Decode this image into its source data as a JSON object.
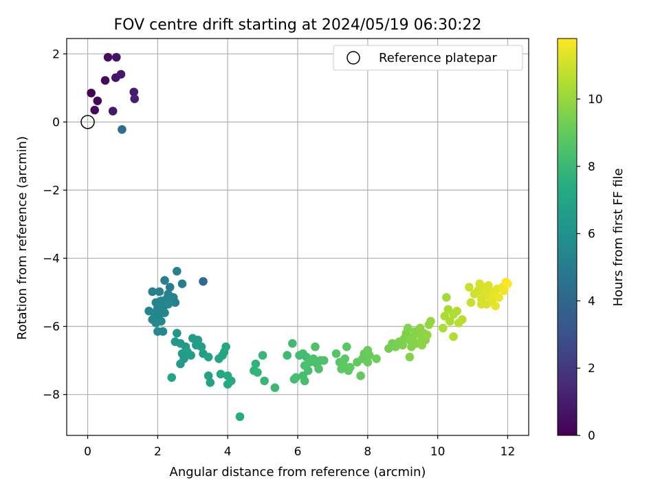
{
  "chart_data": {
    "type": "scatter",
    "title": "FOV centre drift starting at 2024/05/19 06:30:22",
    "xlabel": "Angular distance from reference (arcmin)",
    "ylabel": "Rotation from reference (arcmin)",
    "xlim": [
      -0.6,
      12.6
    ],
    "ylim": [
      -9.2,
      2.45
    ],
    "xticks": [
      0,
      2,
      4,
      6,
      8,
      10,
      12
    ],
    "yticks": [
      -8,
      -6,
      -4,
      -2,
      0,
      2
    ],
    "grid": true,
    "legend": {
      "placement": "top-right",
      "entries": [
        "Reference platepar"
      ]
    },
    "reference_point": {
      "x": 0,
      "y": 0,
      "marker": "open-circle"
    },
    "colorbar": {
      "label": "Hours from first FF file",
      "colormap": "viridis",
      "range": [
        0,
        11.8
      ],
      "ticks": [
        0,
        2,
        4,
        6,
        8,
        10
      ]
    },
    "points": [
      [
        0.1,
        0.85,
        0.1
      ],
      [
        0.2,
        0.35,
        0.2
      ],
      [
        0.28,
        0.62,
        0.3
      ],
      [
        0.5,
        1.22,
        0.4
      ],
      [
        0.58,
        1.9,
        0.5
      ],
      [
        0.82,
        1.9,
        0.6
      ],
      [
        0.8,
        1.3,
        0.7
      ],
      [
        0.95,
        1.4,
        0.8
      ],
      [
        0.72,
        0.32,
        0.9
      ],
      [
        1.32,
        0.88,
        1.0
      ],
      [
        1.34,
        0.68,
        1.1
      ],
      [
        0.98,
        -0.22,
        4.3
      ],
      [
        3.3,
        -4.68,
        4.2
      ],
      [
        2.55,
        -4.38,
        5.2
      ],
      [
        2.2,
        -4.65,
        5.1
      ],
      [
        2.35,
        -4.85,
        5.0
      ],
      [
        2.7,
        -4.75,
        5.1
      ],
      [
        1.85,
        -4.98,
        5.2
      ],
      [
        2.05,
        -4.98,
        5.2
      ],
      [
        2.3,
        -5.05,
        5.3
      ],
      [
        2.45,
        -5.15,
        5.3
      ],
      [
        2.5,
        -5.3,
        5.2
      ],
      [
        2.25,
        -5.2,
        5.3
      ],
      [
        2.1,
        -5.25,
        5.4
      ],
      [
        1.95,
        -5.3,
        5.4
      ],
      [
        2.0,
        -5.45,
        5.4
      ],
      [
        2.15,
        -5.45,
        5.4
      ],
      [
        2.3,
        -5.35,
        5.5
      ],
      [
        1.75,
        -5.55,
        5.4
      ],
      [
        1.9,
        -5.6,
        5.5
      ],
      [
        2.05,
        -5.65,
        5.5
      ],
      [
        2.2,
        -5.6,
        5.5
      ],
      [
        1.85,
        -5.8,
        5.5
      ],
      [
        2.0,
        -5.8,
        5.5
      ],
      [
        2.1,
        -5.85,
        5.6
      ],
      [
        1.95,
        -5.9,
        5.6
      ],
      [
        2.15,
        -6.15,
        5.6
      ],
      [
        2.0,
        -6.15,
        5.6
      ],
      [
        2.55,
        -6.2,
        6.2
      ],
      [
        2.5,
        -6.45,
        6.3
      ],
      [
        2.65,
        -6.5,
        6.3
      ],
      [
        2.8,
        -6.6,
        6.4
      ],
      [
        2.7,
        -6.8,
        6.5
      ],
      [
        2.75,
        -6.95,
        6.5
      ],
      [
        2.85,
        -6.75,
        6.6
      ],
      [
        2.95,
        -6.85,
        6.6
      ],
      [
        2.65,
        -7.1,
        6.5
      ],
      [
        3.0,
        -6.35,
        6.6
      ],
      [
        3.15,
        -6.4,
        6.6
      ],
      [
        3.25,
        -6.6,
        6.7
      ],
      [
        3.1,
        -6.55,
        6.7
      ],
      [
        3.3,
        -6.8,
        6.7
      ],
      [
        3.45,
        -6.9,
        6.8
      ],
      [
        3.45,
        -7.45,
        6.8
      ],
      [
        3.5,
        -7.65,
        6.8
      ],
      [
        2.4,
        -7.5,
        6.9
      ],
      [
        3.75,
        -6.95,
        7.0
      ],
      [
        3.85,
        -6.85,
        7.0
      ],
      [
        3.9,
        -6.75,
        7.1
      ],
      [
        3.95,
        -6.6,
        7.1
      ],
      [
        3.8,
        -7.4,
        7.1
      ],
      [
        4.0,
        -7.45,
        7.2
      ],
      [
        4.1,
        -7.6,
        7.2
      ],
      [
        4.0,
        -7.7,
        7.3
      ],
      [
        4.35,
        -8.65,
        7.4
      ],
      [
        4.8,
        -7.1,
        7.7
      ],
      [
        4.75,
        -7.3,
        7.7
      ],
      [
        4.85,
        -7.35,
        7.8
      ],
      [
        5.0,
        -6.85,
        7.9
      ],
      [
        5.05,
        -7.6,
        7.9
      ],
      [
        5.35,
        -7.8,
        8.0
      ],
      [
        5.7,
        -6.85,
        8.1
      ],
      [
        5.85,
        -6.5,
        8.1
      ],
      [
        6.05,
        -6.85,
        8.2
      ],
      [
        6.15,
        -6.8,
        8.2
      ],
      [
        6.25,
        -6.9,
        8.2
      ],
      [
        5.9,
        -7.55,
        8.2
      ],
      [
        5.95,
        -7.5,
        8.3
      ],
      [
        6.15,
        -7.45,
        8.3
      ],
      [
        6.2,
        -7.6,
        8.3
      ],
      [
        6.3,
        -7.3,
        8.3
      ],
      [
        6.35,
        -7.05,
        8.4
      ],
      [
        6.45,
        -6.95,
        8.4
      ],
      [
        6.55,
        -7.1,
        8.4
      ],
      [
        6.65,
        -7.0,
        8.4
      ],
      [
        6.75,
        -7.0,
        8.5
      ],
      [
        6.5,
        -6.6,
        8.5
      ],
      [
        6.6,
        -7.25,
        8.5
      ],
      [
        6.2,
        -7.15,
        8.4
      ],
      [
        7.1,
        -6.8,
        8.7
      ],
      [
        7.2,
        -7.05,
        8.7
      ],
      [
        7.3,
        -7.1,
        8.8
      ],
      [
        7.35,
        -6.95,
        8.8
      ],
      [
        7.4,
        -6.6,
        8.8
      ],
      [
        7.25,
        -7.25,
        8.8
      ],
      [
        7.45,
        -7.3,
        8.9
      ],
      [
        7.5,
        -7.2,
        8.9
      ],
      [
        7.7,
        -7.05,
        8.9
      ],
      [
        7.8,
        -7.45,
        9.0
      ],
      [
        7.85,
        -6.95,
        9.0
      ],
      [
        7.9,
        -6.8,
        9.0
      ],
      [
        8.0,
        -6.7,
        9.1
      ],
      [
        8.05,
        -6.85,
        9.1
      ],
      [
        8.0,
        -7.05,
        9.1
      ],
      [
        8.25,
        -6.95,
        9.2
      ],
      [
        8.6,
        -6.65,
        9.3
      ],
      [
        8.7,
        -6.5,
        9.3
      ],
      [
        8.8,
        -6.6,
        9.4
      ],
      [
        8.9,
        -6.45,
        9.4
      ],
      [
        9.0,
        -6.55,
        9.5
      ],
      [
        9.05,
        -6.35,
        9.5
      ],
      [
        9.1,
        -6.2,
        9.5
      ],
      [
        9.15,
        -6.05,
        9.6
      ],
      [
        9.2,
        -6.4,
        9.6
      ],
      [
        9.25,
        -6.6,
        9.6
      ],
      [
        9.3,
        -6.3,
        9.7
      ],
      [
        9.35,
        -6.15,
        9.7
      ],
      [
        9.4,
        -6.5,
        9.7
      ],
      [
        9.45,
        -6.2,
        9.7
      ],
      [
        9.5,
        -6.05,
        9.8
      ],
      [
        9.55,
        -6.35,
        9.8
      ],
      [
        9.6,
        -6.2,
        9.8
      ],
      [
        9.65,
        -6.4,
        9.8
      ],
      [
        9.7,
        -6.25,
        9.9
      ],
      [
        9.75,
        -5.95,
        9.9
      ],
      [
        9.8,
        -5.85,
        9.9
      ],
      [
        9.2,
        -6.9,
        9.6
      ],
      [
        9.55,
        -6.55,
        9.8
      ],
      [
        10.25,
        -5.15,
        10.3
      ],
      [
        10.3,
        -5.5,
        10.3
      ],
      [
        10.2,
        -5.7,
        10.4
      ],
      [
        10.35,
        -5.85,
        10.4
      ],
      [
        10.45,
        -5.65,
        10.5
      ],
      [
        10.55,
        -5.55,
        10.5
      ],
      [
        10.6,
        -5.9,
        10.6
      ],
      [
        10.7,
        -5.8,
        10.6
      ],
      [
        10.45,
        -6.3,
        10.5
      ],
      [
        10.15,
        -6.05,
        10.4
      ],
      [
        10.9,
        -4.85,
        10.9
      ],
      [
        10.95,
        -5.3,
        10.9
      ],
      [
        11.05,
        -5.05,
        11.0
      ],
      [
        11.15,
        -4.95,
        11.0
      ],
      [
        11.2,
        -4.75,
        11.1
      ],
      [
        11.25,
        -5.2,
        11.1
      ],
      [
        11.3,
        -5.05,
        11.2
      ],
      [
        11.35,
        -4.85,
        11.2
      ],
      [
        11.4,
        -5.35,
        11.2
      ],
      [
        11.45,
        -5.1,
        11.3
      ],
      [
        11.5,
        -4.95,
        11.3
      ],
      [
        11.55,
        -5.25,
        11.3
      ],
      [
        11.6,
        -5.05,
        11.4
      ],
      [
        11.65,
        -5.4,
        11.4
      ],
      [
        11.7,
        -4.9,
        11.4
      ],
      [
        11.75,
        -5.15,
        11.5
      ],
      [
        11.85,
        -4.85,
        11.5
      ],
      [
        11.9,
        -4.95,
        11.6
      ],
      [
        11.95,
        -4.7,
        11.7
      ],
      [
        12.0,
        -4.75,
        11.8
      ],
      [
        11.25,
        -5.35,
        11.1
      ],
      [
        11.45,
        -4.8,
        11.2
      ]
    ]
  }
}
